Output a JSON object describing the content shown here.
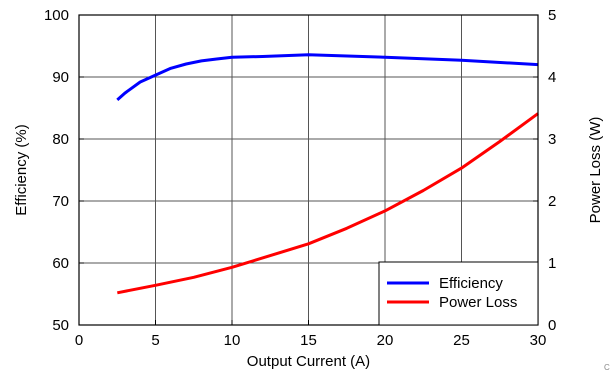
{
  "chart_data": {
    "type": "line",
    "title": "",
    "xlabel": "Output Current (A)",
    "ylabel_left": "Efficiency (%)",
    "ylabel_right": "Power Loss (W)",
    "xlim": [
      0,
      30
    ],
    "ylim_left": [
      50,
      100
    ],
    "ylim_right": [
      0,
      5
    ],
    "x_ticks": [
      "0",
      "5",
      "10",
      "15",
      "20",
      "25",
      "30"
    ],
    "y_left_ticks": [
      "50",
      "60",
      "70",
      "80",
      "90",
      "100"
    ],
    "y_right_ticks": [
      "0",
      "1",
      "2",
      "3",
      "4",
      "5"
    ],
    "grid": true,
    "legend_position": "bottom-right",
    "corner_mark": "C",
    "series": [
      {
        "name": "Efficiency",
        "axis": "left",
        "color": "#0000ff",
        "x": [
          2.5,
          3,
          4,
          5,
          6,
          7,
          8,
          9,
          10,
          12,
          15,
          20,
          25,
          30
        ],
        "y": [
          86.3,
          87.4,
          89.2,
          90.3,
          91.4,
          92.1,
          92.6,
          92.9,
          93.2,
          93.3,
          93.6,
          93.2,
          92.7,
          92.0
        ]
      },
      {
        "name": "Power Loss",
        "axis": "right",
        "color": "#ff0000",
        "x": [
          2.5,
          5,
          7.5,
          10,
          12.5,
          15,
          17.5,
          20,
          22.5,
          25,
          27.5,
          30
        ],
        "y": [
          0.52,
          0.64,
          0.77,
          0.93,
          1.12,
          1.31,
          1.56,
          1.84,
          2.17,
          2.53,
          2.96,
          3.41
        ]
      }
    ]
  }
}
